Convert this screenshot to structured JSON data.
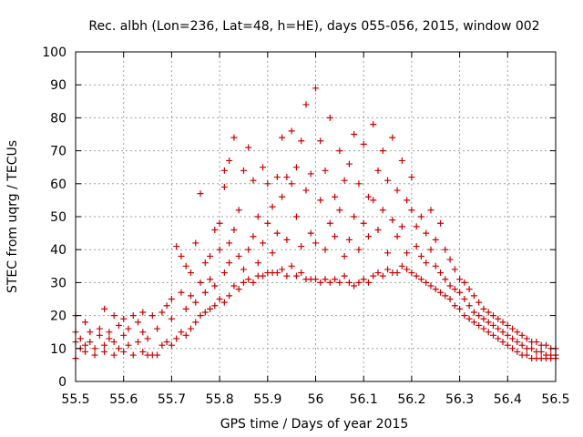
{
  "chart_data": {
    "type": "scatter",
    "title": "Rec. albh (Lon=236, Lat=48, h=HE), days 055-056, 2015, window 002",
    "xlabel": "GPS time / Days of year 2015",
    "ylabel": "STEC from uqrg / TECUs",
    "xlim": [
      55.5,
      56.5
    ],
    "ylim": [
      0,
      100
    ],
    "x_ticks": [
      "55.5",
      "55.6",
      "55.7",
      "55.8",
      "55.9",
      "56",
      "56.1",
      "56.2",
      "56.3",
      "56.4",
      "56.5"
    ],
    "y_ticks": [
      "0",
      "10",
      "20",
      "30",
      "40",
      "50",
      "60",
      "70",
      "80",
      "90",
      "100"
    ],
    "grid": true,
    "marker": "plus",
    "color": "#cc0000",
    "series": [
      {
        "points": [
          [
            55.5,
            7
          ],
          [
            55.5,
            12
          ],
          [
            55.5,
            15
          ],
          [
            55.5,
            20
          ],
          [
            55.51,
            10
          ],
          [
            55.51,
            13
          ],
          [
            55.52,
            9
          ],
          [
            55.52,
            11
          ],
          [
            55.52,
            18
          ],
          [
            55.53,
            12
          ],
          [
            55.53,
            15
          ],
          [
            55.54,
            8
          ],
          [
            55.54,
            10
          ],
          [
            55.55,
            14
          ],
          [
            55.55,
            16
          ],
          [
            55.56,
            9
          ],
          [
            55.56,
            11
          ],
          [
            55.56,
            22
          ],
          [
            55.57,
            13
          ],
          [
            55.57,
            15
          ],
          [
            55.58,
            8
          ],
          [
            55.58,
            12
          ],
          [
            55.58,
            20
          ],
          [
            55.59,
            10
          ],
          [
            55.59,
            17
          ],
          [
            55.6,
            9
          ],
          [
            55.6,
            14
          ],
          [
            55.6,
            19
          ],
          [
            55.61,
            11
          ],
          [
            55.61,
            16
          ],
          [
            55.62,
            8
          ],
          [
            55.62,
            20
          ],
          [
            55.63,
            12
          ],
          [
            55.63,
            18
          ],
          [
            55.64,
            9
          ],
          [
            55.64,
            15
          ],
          [
            55.64,
            21
          ],
          [
            55.65,
            8
          ],
          [
            55.65,
            13
          ],
          [
            55.66,
            8
          ],
          [
            55.66,
            20
          ],
          [
            55.67,
            8
          ],
          [
            55.67,
            16
          ],
          [
            55.68,
            11
          ],
          [
            55.68,
            21
          ],
          [
            55.69,
            12
          ],
          [
            55.69,
            23
          ],
          [
            55.7,
            11
          ],
          [
            55.7,
            19
          ],
          [
            55.7,
            25
          ],
          [
            55.71,
            13
          ],
          [
            55.71,
            41
          ],
          [
            55.72,
            15
          ],
          [
            55.72,
            27
          ],
          [
            55.72,
            38
          ],
          [
            55.73,
            14
          ],
          [
            55.73,
            22
          ],
          [
            55.73,
            35
          ],
          [
            55.74,
            16
          ],
          [
            55.74,
            26
          ],
          [
            55.74,
            33
          ],
          [
            55.75,
            18
          ],
          [
            55.75,
            24
          ],
          [
            55.75,
            42
          ],
          [
            55.76,
            20
          ],
          [
            55.76,
            30
          ],
          [
            55.76,
            57
          ],
          [
            55.77,
            21
          ],
          [
            55.77,
            27
          ],
          [
            55.77,
            36
          ],
          [
            55.78,
            22
          ],
          [
            55.78,
            31
          ],
          [
            55.78,
            38
          ],
          [
            55.79,
            23
          ],
          [
            55.79,
            29
          ],
          [
            55.79,
            46
          ],
          [
            55.8,
            25
          ],
          [
            55.8,
            40
          ],
          [
            55.8,
            48
          ],
          [
            55.81,
            24
          ],
          [
            55.81,
            33
          ],
          [
            55.81,
            59
          ],
          [
            55.81,
            64
          ],
          [
            55.82,
            26
          ],
          [
            55.82,
            36
          ],
          [
            55.82,
            42
          ],
          [
            55.82,
            67
          ],
          [
            55.83,
            29
          ],
          [
            55.83,
            46
          ],
          [
            55.83,
            74
          ],
          [
            55.84,
            28
          ],
          [
            55.84,
            38
          ],
          [
            55.84,
            52
          ],
          [
            55.85,
            30
          ],
          [
            55.85,
            34
          ],
          [
            55.85,
            64
          ],
          [
            55.86,
            31
          ],
          [
            55.86,
            40
          ],
          [
            55.86,
            71
          ],
          [
            55.87,
            30
          ],
          [
            55.87,
            44
          ],
          [
            55.87,
            61
          ],
          [
            55.88,
            32
          ],
          [
            55.88,
            36
          ],
          [
            55.88,
            50
          ],
          [
            55.89,
            32
          ],
          [
            55.89,
            42
          ],
          [
            55.89,
            65
          ],
          [
            55.9,
            33
          ],
          [
            55.9,
            48
          ],
          [
            55.9,
            60
          ],
          [
            55.91,
            33
          ],
          [
            55.91,
            39
          ],
          [
            55.91,
            53
          ],
          [
            55.92,
            33
          ],
          [
            55.92,
            45
          ],
          [
            55.92,
            62
          ],
          [
            55.93,
            34
          ],
          [
            55.93,
            56
          ],
          [
            55.93,
            74
          ],
          [
            55.94,
            32
          ],
          [
            55.94,
            43
          ],
          [
            55.94,
            62
          ],
          [
            55.95,
            35
          ],
          [
            55.95,
            60
          ],
          [
            55.95,
            76
          ],
          [
            55.96,
            32
          ],
          [
            55.96,
            50
          ],
          [
            55.96,
            65
          ],
          [
            55.97,
            33
          ],
          [
            55.97,
            41
          ],
          [
            55.97,
            73
          ],
          [
            55.98,
            31
          ],
          [
            55.98,
            58
          ],
          [
            55.98,
            84
          ],
          [
            55.99,
            31
          ],
          [
            55.99,
            45
          ],
          [
            55.99,
            63
          ],
          [
            56.0,
            31
          ],
          [
            56.0,
            42
          ],
          [
            56.0,
            89
          ],
          [
            56.01,
            30
          ],
          [
            56.01,
            55
          ],
          [
            56.01,
            73
          ],
          [
            56.02,
            31
          ],
          [
            56.02,
            40
          ],
          [
            56.02,
            64
          ],
          [
            56.03,
            30
          ],
          [
            56.03,
            48
          ],
          [
            56.03,
            80
          ],
          [
            56.04,
            31
          ],
          [
            56.04,
            44
          ],
          [
            56.04,
            56
          ],
          [
            56.05,
            30
          ],
          [
            56.05,
            52
          ],
          [
            56.05,
            70
          ],
          [
            56.06,
            32
          ],
          [
            56.06,
            38
          ],
          [
            56.06,
            61
          ],
          [
            56.07,
            30
          ],
          [
            56.07,
            43
          ],
          [
            56.07,
            66
          ],
          [
            56.08,
            29
          ],
          [
            56.08,
            50
          ],
          [
            56.08,
            75
          ],
          [
            56.09,
            30
          ],
          [
            56.09,
            40
          ],
          [
            56.09,
            60
          ],
          [
            56.1,
            31
          ],
          [
            56.1,
            48
          ],
          [
            56.1,
            72
          ],
          [
            56.11,
            30
          ],
          [
            56.11,
            44
          ],
          [
            56.11,
            56
          ],
          [
            56.12,
            32
          ],
          [
            56.12,
            55
          ],
          [
            56.12,
            78
          ],
          [
            56.13,
            33
          ],
          [
            56.13,
            46
          ],
          [
            56.13,
            64
          ],
          [
            56.14,
            32
          ],
          [
            56.14,
            52
          ],
          [
            56.14,
            70
          ],
          [
            56.15,
            34
          ],
          [
            56.15,
            39
          ],
          [
            56.15,
            61
          ],
          [
            56.16,
            33
          ],
          [
            56.16,
            49
          ],
          [
            56.16,
            74
          ],
          [
            56.17,
            33
          ],
          [
            56.17,
            44
          ],
          [
            56.17,
            58
          ],
          [
            56.18,
            35
          ],
          [
            56.18,
            47
          ],
          [
            56.18,
            67
          ],
          [
            56.19,
            34
          ],
          [
            56.19,
            39
          ],
          [
            56.19,
            55
          ],
          [
            56.2,
            33
          ],
          [
            56.2,
            52
          ],
          [
            56.2,
            62
          ],
          [
            56.21,
            32
          ],
          [
            56.21,
            41
          ],
          [
            56.21,
            47
          ],
          [
            56.22,
            31
          ],
          [
            56.22,
            38
          ],
          [
            56.22,
            50
          ],
          [
            56.23,
            30
          ],
          [
            56.23,
            36
          ],
          [
            56.23,
            45
          ],
          [
            56.24,
            29
          ],
          [
            56.24,
            40
          ],
          [
            56.24,
            52
          ],
          [
            56.25,
            28
          ],
          [
            56.25,
            35
          ],
          [
            56.25,
            43
          ],
          [
            56.26,
            27
          ],
          [
            56.26,
            33
          ],
          [
            56.26,
            48
          ],
          [
            56.27,
            26
          ],
          [
            56.27,
            31
          ],
          [
            56.27,
            40
          ],
          [
            56.28,
            25
          ],
          [
            56.28,
            29
          ],
          [
            56.28,
            37
          ],
          [
            56.29,
            23
          ],
          [
            56.29,
            28
          ],
          [
            56.29,
            34
          ],
          [
            56.3,
            22
          ],
          [
            56.3,
            27
          ],
          [
            56.3,
            31
          ],
          [
            56.31,
            20
          ],
          [
            56.31,
            25
          ],
          [
            56.31,
            30
          ],
          [
            56.32,
            19
          ],
          [
            56.32,
            23
          ],
          [
            56.32,
            28
          ],
          [
            56.33,
            18
          ],
          [
            56.33,
            21
          ],
          [
            56.33,
            26
          ],
          [
            56.34,
            17
          ],
          [
            56.34,
            20
          ],
          [
            56.34,
            24
          ],
          [
            56.35,
            16
          ],
          [
            56.35,
            19
          ],
          [
            56.35,
            22
          ],
          [
            56.36,
            15
          ],
          [
            56.36,
            18
          ],
          [
            56.36,
            21
          ],
          [
            56.37,
            14
          ],
          [
            56.37,
            17
          ],
          [
            56.37,
            20
          ],
          [
            56.38,
            13
          ],
          [
            56.38,
            16
          ],
          [
            56.38,
            19
          ],
          [
            56.39,
            12
          ],
          [
            56.39,
            15
          ],
          [
            56.39,
            18
          ],
          [
            56.4,
            11
          ],
          [
            56.4,
            14
          ],
          [
            56.4,
            17
          ],
          [
            56.41,
            10
          ],
          [
            56.41,
            13
          ],
          [
            56.41,
            16
          ],
          [
            56.42,
            9
          ],
          [
            56.42,
            12
          ],
          [
            56.42,
            15
          ],
          [
            56.43,
            8
          ],
          [
            56.43,
            11
          ],
          [
            56.43,
            14
          ],
          [
            56.44,
            8
          ],
          [
            56.44,
            10
          ],
          [
            56.44,
            13
          ],
          [
            56.45,
            7
          ],
          [
            56.45,
            10
          ],
          [
            56.45,
            12
          ],
          [
            56.46,
            7
          ],
          [
            56.46,
            9
          ],
          [
            56.46,
            12
          ],
          [
            56.47,
            7
          ],
          [
            56.47,
            9
          ],
          [
            56.47,
            11
          ],
          [
            56.48,
            7
          ],
          [
            56.48,
            8
          ],
          [
            56.48,
            11
          ],
          [
            56.49,
            7
          ],
          [
            56.49,
            8
          ],
          [
            56.49,
            10
          ],
          [
            56.5,
            7
          ],
          [
            56.5,
            8
          ],
          [
            56.5,
            10
          ]
        ]
      }
    ]
  }
}
